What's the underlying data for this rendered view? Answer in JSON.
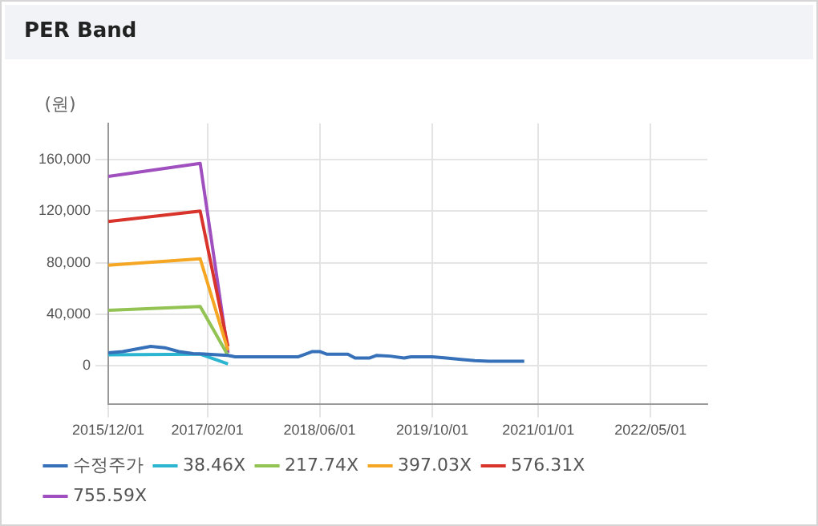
{
  "chart_data": {
    "type": "line",
    "title": "PER Band",
    "ylabel": "(원)",
    "xlim": [
      "2015-12-01",
      "2023-01-01"
    ],
    "xticks": [
      {
        "value": "2015-12-01",
        "label": "2015/12/01"
      },
      {
        "value": "2017-02-01",
        "label": "2017/02/01"
      },
      {
        "value": "2018-06-01",
        "label": "2018/06/01"
      },
      {
        "value": "2019-10-01",
        "label": "2019/10/01"
      },
      {
        "value": "2021-01-01",
        "label": "2021/01/01"
      },
      {
        "value": "2022-05-01",
        "label": "2022/05/01"
      }
    ],
    "ylim": [
      -30000,
      188000
    ],
    "yticks": [
      {
        "value": 0,
        "label": "0"
      },
      {
        "value": 40000,
        "label": "40,000"
      },
      {
        "value": 80000,
        "label": "80,000"
      },
      {
        "value": 120000,
        "label": "120,000"
      },
      {
        "value": 160000,
        "label": "160,000"
      }
    ],
    "grid": true,
    "legend": "bottom",
    "marker": "none",
    "line_style": "solid",
    "series": [
      {
        "name": "수정주가",
        "color": "#3570b8",
        "x": [
          "2015-12",
          "2016-02",
          "2016-04",
          "2016-06",
          "2016-08",
          "2016-10",
          "2016-12",
          "2017-02",
          "2017-05",
          "2017-06",
          "2018-01",
          "2018-03",
          "2018-04",
          "2018-05",
          "2018-06",
          "2018-07",
          "2018-10",
          "2018-11",
          "2019-01",
          "2019-02",
          "2019-04",
          "2019-06",
          "2019-07",
          "2019-10",
          "2019-12",
          "2020-02",
          "2020-04",
          "2020-06",
          "2020-11"
        ],
        "values": [
          10000,
          11000,
          13000,
          15000,
          14000,
          11000,
          9500,
          9000,
          8000,
          7000,
          7000,
          7000,
          9000,
          11000,
          11000,
          9000,
          9000,
          6000,
          6000,
          8000,
          7500,
          6000,
          7000,
          7000,
          6000,
          5000,
          4000,
          3500,
          3500
        ]
      },
      {
        "name": "38.46X",
        "color": "#2bb5d0",
        "x": [
          "2015-12",
          "2017-01",
          "2017-05"
        ],
        "values": [
          8500,
          9000,
          1500
        ]
      },
      {
        "name": "217.74X",
        "color": "#92c353",
        "x": [
          "2015-12",
          "2017-01",
          "2017-05"
        ],
        "values": [
          43000,
          46000,
          8000
        ]
      },
      {
        "name": "397.03X",
        "color": "#f5a623",
        "x": [
          "2015-12",
          "2017-01",
          "2017-05"
        ],
        "values": [
          78000,
          83000,
          12000
        ]
      },
      {
        "name": "576.31X",
        "color": "#d9342b",
        "x": [
          "2015-12",
          "2017-01",
          "2017-05"
        ],
        "values": [
          112000,
          120000,
          15000
        ]
      },
      {
        "name": "755.59X",
        "color": "#a04fbf",
        "x": [
          "2015-12",
          "2017-01",
          "2017-05"
        ],
        "values": [
          147000,
          157000,
          10000
        ]
      }
    ]
  }
}
